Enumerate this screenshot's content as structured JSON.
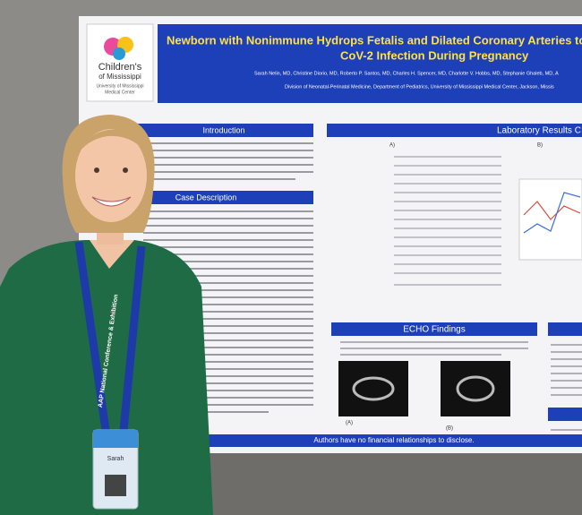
{
  "poster": {
    "title_line1": "Newborn with Nonimmune Hydrops Fetalis and Dilated Coronary Arteries to a Mot",
    "title_line2": "CoV-2 Infection During Pregnancy",
    "authors": "Sarah Nelin, MD, Christine Diorio, MD, Roberto P. Santos, MD, Charles H. Spencer, MD, Charlotte V. Hobbs, MD, Stephanie Ghaleb, MD, A",
    "affiliation": "Division of Neonatal-Perinatal Medicine, Department of Pediatrics, University of Mississippi Medical Center, Jackson, Missis",
    "logo": {
      "line1": "Children's",
      "line2": "of Mississippi",
      "sub1": "University of Mississippi",
      "sub2": "Medical Center"
    },
    "sections": {
      "introduction": "Introduction",
      "case": "Case Description",
      "lab": "Laboratory Results C",
      "echo": "ECHO Findings"
    },
    "lab_labels": [
      "A)",
      "B)"
    ],
    "echo_labels": [
      "(A)",
      "(B)"
    ],
    "footer": "Authors have no financial relationships to disclose."
  },
  "badge": {
    "lanyard": "AAP National Conference & Exhibition",
    "name": "Sarah"
  }
}
